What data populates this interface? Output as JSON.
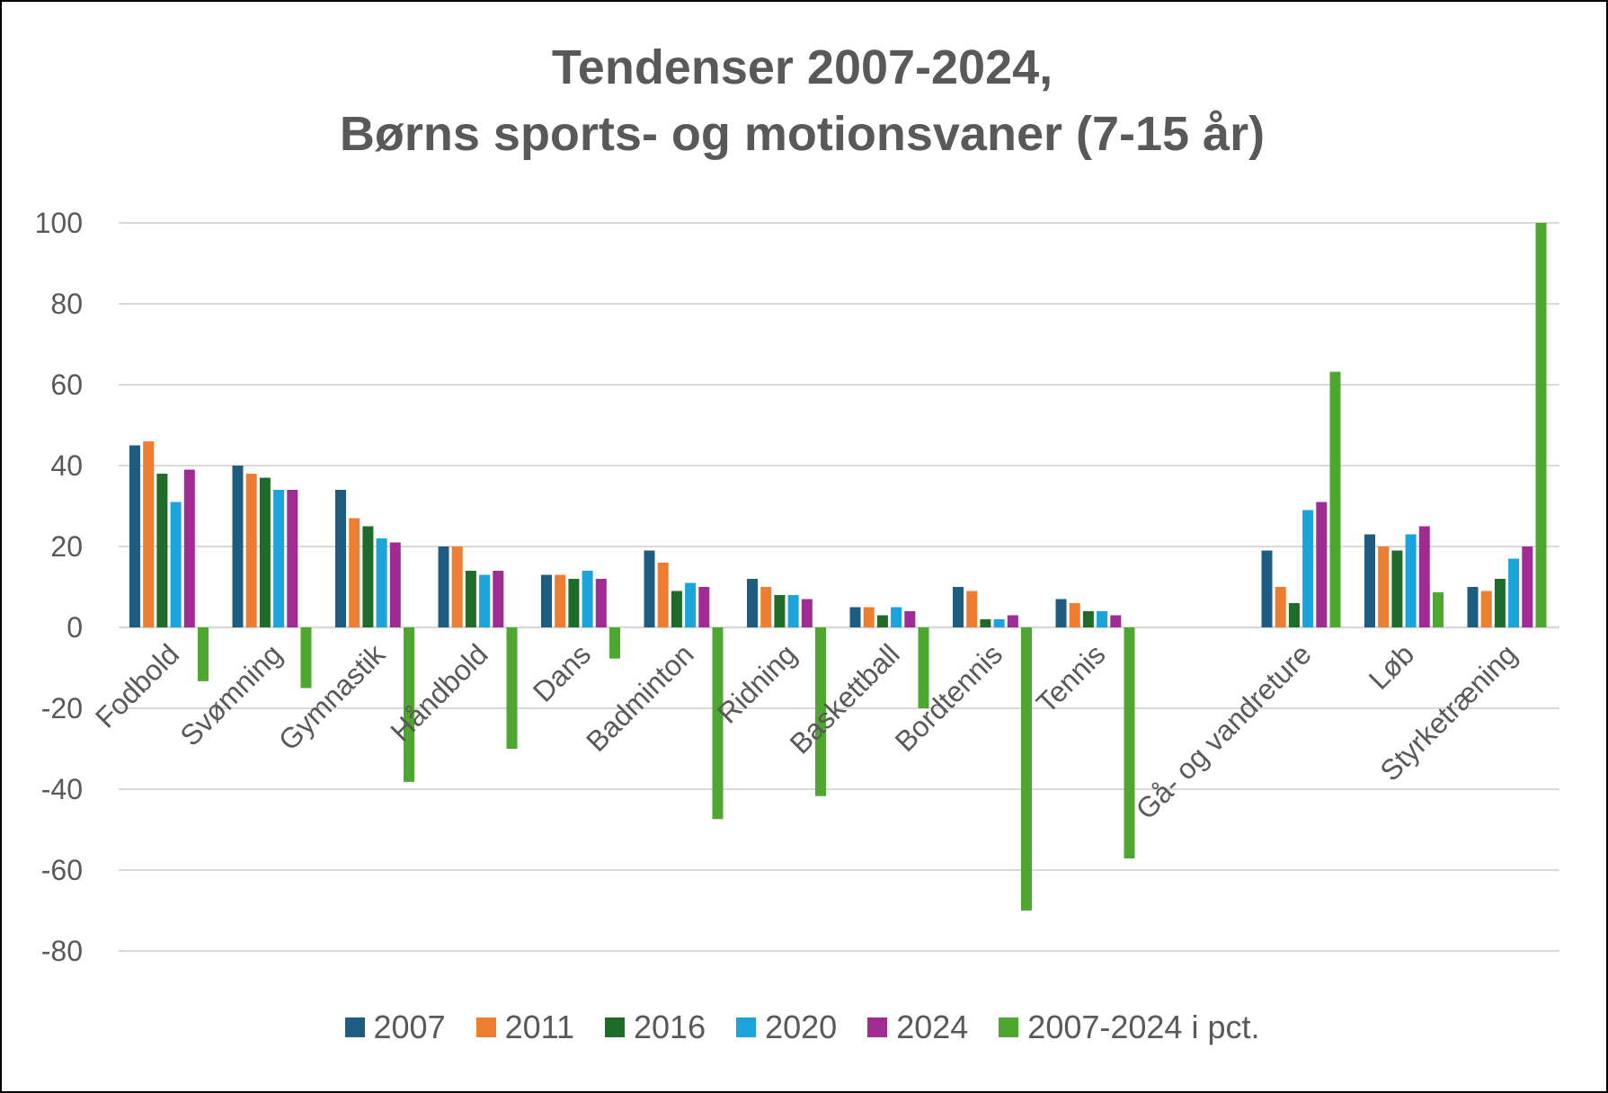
{
  "chart_data": {
    "type": "bar",
    "title_lines": [
      "Tendenser 2007-2024,",
      "Børns sports- og motionsvaner (7-15 år)"
    ],
    "categories": [
      "Fodbold",
      "Svømning",
      "Gymnastik",
      "Håndbold",
      "Dans",
      "Badminton",
      "Ridning",
      "Baskettball",
      "Bordtennis",
      "Tennis",
      "",
      "Gå- og vandreture",
      "Løb",
      "Styrketræning"
    ],
    "ylim": [
      -80,
      100
    ],
    "yticks": [
      100,
      80,
      60,
      40,
      20,
      0,
      -20,
      -40,
      -60,
      -80
    ],
    "grid": true,
    "legend_position": "bottom",
    "series": [
      {
        "name": "2007",
        "color": "#1f5c82",
        "values": [
          45,
          40,
          34,
          20,
          13,
          19,
          12,
          5,
          10,
          7,
          null,
          19,
          23,
          10
        ]
      },
      {
        "name": "2011",
        "color": "#ed7d31",
        "values": [
          46,
          38,
          27,
          20,
          13,
          16,
          10,
          5,
          9,
          6,
          null,
          10,
          20,
          9
        ]
      },
      {
        "name": "2016",
        "color": "#1e6b2a",
        "values": [
          38,
          37,
          25,
          14,
          12,
          9,
          8,
          3,
          2,
          4,
          null,
          6,
          19,
          12
        ]
      },
      {
        "name": "2020",
        "color": "#1ba3dc",
        "values": [
          31,
          34,
          22,
          13,
          14,
          11,
          8,
          5,
          2,
          4,
          null,
          29,
          23,
          17
        ]
      },
      {
        "name": "2024",
        "color": "#a02b93",
        "values": [
          39,
          34,
          21,
          14,
          12,
          10,
          7,
          4,
          3,
          3,
          null,
          31,
          25,
          20
        ]
      },
      {
        "name": "2007-2024 i pct.",
        "color": "#4ea72e",
        "values": [
          -13.3,
          -15,
          -38.2,
          -30,
          -7.7,
          -47.4,
          -41.7,
          -20,
          -70,
          -57.1,
          null,
          63.2,
          8.7,
          100
        ]
      }
    ]
  }
}
